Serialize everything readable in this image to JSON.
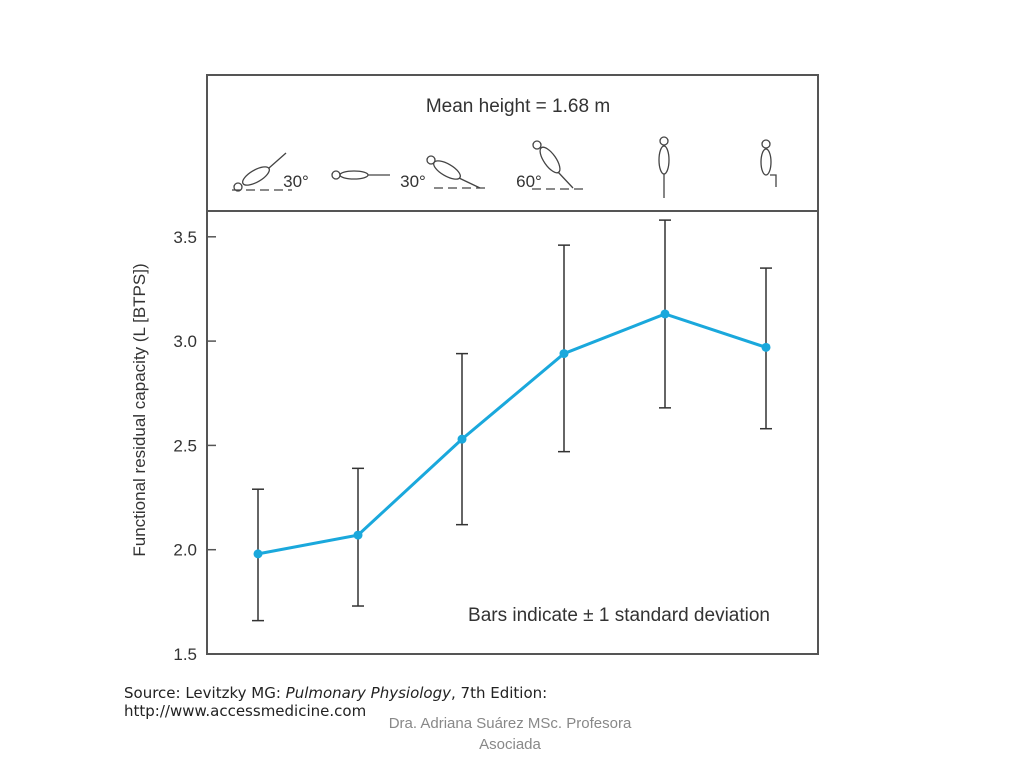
{
  "chart_data": {
    "type": "line",
    "header": "Mean height = 1.68 m",
    "posture_labels": [
      "30°",
      "30°",
      "60°",
      "",
      "",
      ""
    ],
    "postures": [
      "head-down-30",
      "supine",
      "head-up-30",
      "head-up-60",
      "standing",
      "sitting"
    ],
    "ylabel": "Functional residual capacity (L [BTPS])",
    "ylim": [
      1.5,
      3.6
    ],
    "yticks": [
      "1.5",
      "2.0",
      "2.5",
      "3.0",
      "3.5"
    ],
    "ytick_values": [
      1.5,
      2.0,
      2.5,
      3.0,
      3.5
    ],
    "values": [
      1.98,
      2.07,
      2.53,
      2.94,
      3.13,
      2.97
    ],
    "err_upper": [
      2.29,
      2.39,
      2.94,
      3.46,
      3.58,
      3.35
    ],
    "err_lower": [
      1.66,
      1.73,
      2.12,
      2.47,
      2.68,
      2.58
    ],
    "annotation": "Bars indicate ± 1 standard deviation",
    "line_color": "#1aa8dc",
    "grid": false
  },
  "source": {
    "prefix": "Source: Levitzky MG: ",
    "book": "Pulmonary Physiology",
    "suffix": ", 7th Edition:",
    "url": "http://www.accessmedicine.com"
  },
  "footer": "Dra. Adriana Suárez MSc. Profesora Asociada"
}
